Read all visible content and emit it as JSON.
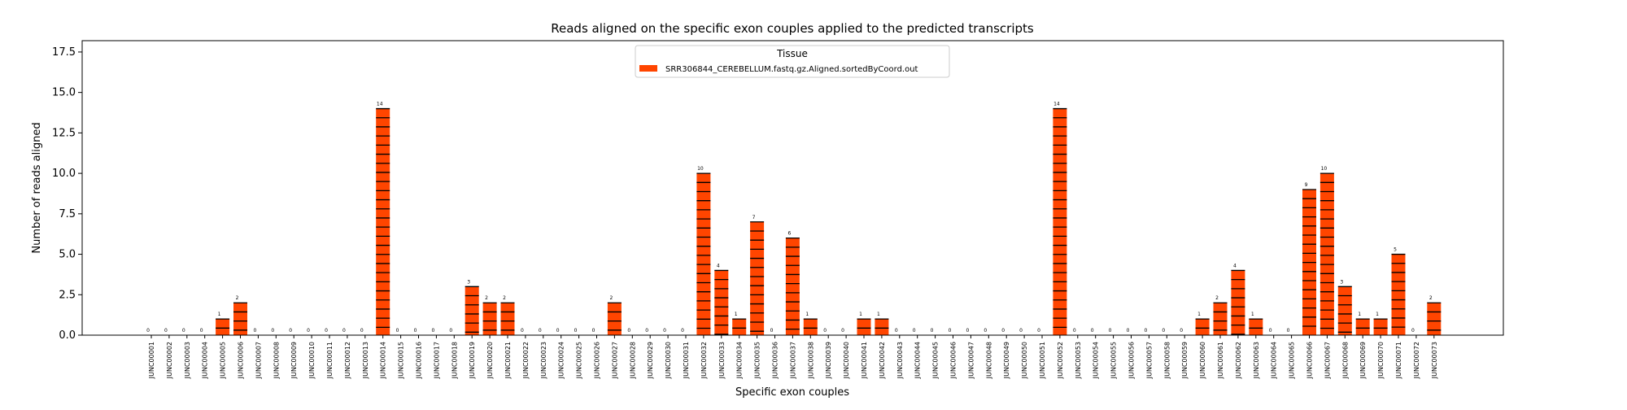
{
  "chart_data": {
    "type": "bar",
    "title": "Reads aligned on the specific exon couples applied to the predicted transcripts",
    "xlabel": "Specific exon couples",
    "ylabel": "Number of reads aligned",
    "ylim": [
      0,
      18.2
    ],
    "yticks": [
      "0.0",
      "2.5",
      "5.0",
      "7.5",
      "10.0",
      "12.5",
      "15.0",
      "17.5"
    ],
    "grid": false,
    "legend": {
      "title": "Tissue",
      "placement": "top-center"
    },
    "categories": [
      "JUNC00001",
      "JUNC00002",
      "JUNC00003",
      "JUNC00004",
      "JUNC00005",
      "JUNC00006",
      "JUNC00007",
      "JUNC00008",
      "JUNC00009",
      "JUNC00010",
      "JUNC00011",
      "JUNC00012",
      "JUNC00013",
      "JUNC00014",
      "JUNC00015",
      "JUNC00016",
      "JUNC00017",
      "JUNC00018",
      "JUNC00019",
      "JUNC00020",
      "JUNC00021",
      "JUNC00022",
      "JUNC00023",
      "JUNC00024",
      "JUNC00025",
      "JUNC00026",
      "JUNC00027",
      "JUNC00028",
      "JUNC00029",
      "JUNC00030",
      "JUNC00031",
      "JUNC00032",
      "JUNC00033",
      "JUNC00034",
      "JUNC00035",
      "JUNC00036",
      "JUNC00037",
      "JUNC00038",
      "JUNC00039",
      "JUNC00040",
      "JUNC00041",
      "JUNC00042",
      "JUNC00043",
      "JUNC00044",
      "JUNC00045",
      "JUNC00046",
      "JUNC00047",
      "JUNC00048",
      "JUNC00049",
      "JUNC00050",
      "JUNC00051",
      "JUNC00052",
      "JUNC00053",
      "JUNC00054",
      "JUNC00055",
      "JUNC00056",
      "JUNC00057",
      "JUNC00058",
      "JUNC00059",
      "JUNC00060",
      "JUNC00061",
      "JUNC00062",
      "JUNC00063",
      "JUNC00064",
      "JUNC00065",
      "JUNC00066",
      "JUNC00067",
      "JUNC00068",
      "JUNC00069",
      "JUNC00070",
      "JUNC00071",
      "JUNC00072",
      "JUNC00073"
    ],
    "series": [
      {
        "name": "SRR306844_CEREBELLUM.fastq.gz.Aligned.sortedByCoord.out",
        "color": "#ff4500",
        "values": [
          0,
          0,
          0,
          0,
          1,
          2,
          0,
          0,
          0,
          0,
          0,
          0,
          0,
          14,
          0,
          0,
          0,
          0,
          3,
          2,
          2,
          0,
          0,
          0,
          0,
          0,
          2,
          0,
          0,
          0,
          0,
          10,
          4,
          1,
          7,
          0,
          6,
          1,
          0,
          0,
          1,
          1,
          0,
          0,
          0,
          0,
          0,
          0,
          0,
          0,
          0,
          14,
          0,
          0,
          0,
          0,
          0,
          0,
          0,
          1,
          2,
          4,
          1,
          0,
          0,
          9,
          10,
          3,
          1,
          1,
          5,
          0,
          2
        ]
      }
    ]
  }
}
